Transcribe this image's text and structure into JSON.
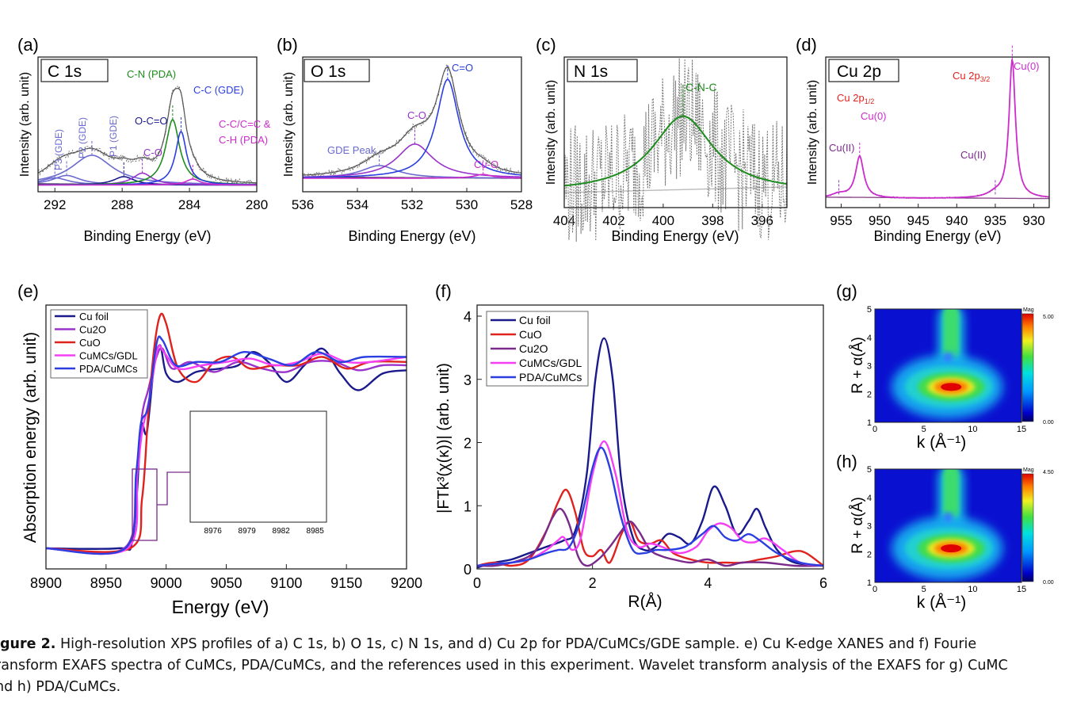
{
  "figure": {
    "caption_label": "igure 2.",
    "caption_lines": [
      " High-resolution XPS profiles of a) C 1s, b) O 1s, c) N 1s, and d) Cu 2p for PDA/CuMCs/GDE sample. e) Cu K-edge XANES and f) Fourie",
      "ransform EXAFS spectra of CuMCs, PDA/CuMCs, and the references used in this experiment. Wavelet transform analysis of the EXAFS for g) CuMC",
      "nd h) PDA/CuMCs."
    ]
  },
  "colors": {
    "navy": "#1a1a8c",
    "blue": "#2b3fe0",
    "red": "#e0221e",
    "magenta": "#f53ff5",
    "purple": "#7a2a8a",
    "violet": "#9933cc",
    "green": "#1e8c1e",
    "gray": "#777777",
    "pink": "#cc2ccc",
    "lavender": "#6a6ad0"
  },
  "chart_data": [
    {
      "id": "a",
      "type": "line",
      "panel_label": "(a)",
      "box_label": "C 1s",
      "xlabel": "Binding Energy (eV)",
      "ylabel": "Intensity (arb. unit)",
      "xlim": [
        293,
        280
      ],
      "reversed_x": true,
      "x_ticks": [
        292,
        288,
        284,
        280
      ],
      "peaks": [
        {
          "label": "P3 (GDE)",
          "center": 292.0,
          "height": 0.06,
          "fwhm": 2.0,
          "color": "#6a6ad0"
        },
        {
          "label": "P2 (GDE)",
          "center": 291.3,
          "height": 0.08,
          "fwhm": 2.0,
          "color": "#6a6ad0"
        },
        {
          "label": "P1 (GDE)",
          "center": 289.8,
          "height": 0.25,
          "fwhm": 3.0,
          "color": "#6a6ad0"
        },
        {
          "label": "O-C=O",
          "center": 287.9,
          "height": 0.07,
          "fwhm": 1.5,
          "color": "#1a1a8c"
        },
        {
          "label": "C-O",
          "center": 286.8,
          "height": 0.1,
          "fwhm": 1.4,
          "color": "#9933cc"
        },
        {
          "label": "C-N (PDA)",
          "center": 285.0,
          "height": 0.55,
          "fwhm": 1.0,
          "color": "#1e8c1e"
        },
        {
          "label": "C-C (GDE)",
          "center": 284.5,
          "height": 0.45,
          "fwhm": 0.8,
          "color": "#2b3fe0"
        },
        {
          "label": "C-C/C=C & C-H (PDA)",
          "center": 283.8,
          "height": 0.05,
          "fwhm": 1.0,
          "color": "#cc2ccc"
        }
      ],
      "text_labels": [
        "C-N (PDA)",
        "C-C (GDE)",
        "O-C=O",
        "C-O",
        "P1 (GDE)",
        "P2 (GDE)",
        "P3 (GDE)",
        "C-C/C=C &",
        "C-H (PDA)"
      ]
    },
    {
      "id": "b",
      "type": "line",
      "panel_label": "(b)",
      "box_label": "O 1s",
      "xlabel": "Binding Energy (eV)",
      "ylabel": "Intensity (arb. unit)",
      "xlim": [
        536,
        528
      ],
      "reversed_x": true,
      "x_ticks": [
        536,
        534,
        532,
        530,
        528
      ],
      "peaks": [
        {
          "label": "GDE Peak",
          "center": 533.2,
          "height": 0.1,
          "fwhm": 1.6,
          "color": "#6a6ad0"
        },
        {
          "label": "C-O",
          "center": 531.9,
          "height": 0.27,
          "fwhm": 1.6,
          "color": "#9933cc"
        },
        {
          "label": "C=O",
          "center": 530.7,
          "height": 0.78,
          "fwhm": 1.0,
          "color": "#2b3fe0"
        },
        {
          "label": "Cu-O",
          "center": 529.4,
          "height": 0.03,
          "fwhm": 0.8,
          "color": "#cc2ccc"
        }
      ],
      "text_labels": [
        "C=O",
        "C-O",
        "GDE Peak",
        "Cu-O"
      ]
    },
    {
      "id": "c",
      "type": "line",
      "panel_label": "(c)",
      "box_label": "N 1s",
      "xlabel": "Binding Energy (eV)",
      "ylabel": "Intensity (arb. unit)",
      "xlim": [
        404,
        395
      ],
      "reversed_x": true,
      "x_ticks": [
        404,
        402,
        400,
        398,
        396
      ],
      "peaks": [
        {
          "label": "C-N-C",
          "center": 399.2,
          "height": 0.55,
          "fwhm": 3.0,
          "color": "#1e8c1e"
        }
      ],
      "text_labels": [
        "C-N-C"
      ]
    },
    {
      "id": "d",
      "type": "line",
      "panel_label": "(d)",
      "box_label": "Cu 2p",
      "xlabel": "Binding Energy (eV)",
      "ylabel": "Intensity (arb. unit)",
      "xlim": [
        957,
        928
      ],
      "reversed_x": true,
      "x_ticks": [
        955,
        950,
        945,
        940,
        935,
        930
      ],
      "peaks": [
        {
          "label": "Cu(II) 2p1/2",
          "center": 955.3,
          "height": 0.03,
          "fwhm": 2.5,
          "color": "#9933cc"
        },
        {
          "label": "Cu(0) 2p1/2",
          "center": 952.6,
          "height": 0.3,
          "fwhm": 1.3,
          "color": "#cc2ccc"
        },
        {
          "label": "Cu(II) 2p3/2",
          "center": 935.0,
          "height": 0.03,
          "fwhm": 2.5,
          "color": "#9933cc"
        },
        {
          "label": "Cu(0) 2p3/2",
          "center": 932.8,
          "height": 1.0,
          "fwhm": 1.0,
          "color": "#cc2ccc"
        }
      ],
      "text_labels": [
        "Cu(0)",
        "Cu 2p",
        "3/2",
        "Cu 2p",
        "1/2",
        "Cu(0)",
        "Cu(II)",
        "Cu(II)"
      ]
    },
    {
      "id": "e",
      "type": "line",
      "panel_label": "(e)",
      "xlabel": "Energy (eV)",
      "ylabel": "Absorption energy (arb. unit)",
      "xlim": [
        8900,
        9200
      ],
      "ylim": [
        0,
        1.6
      ],
      "x_ticks": [
        8900,
        8950,
        9000,
        9050,
        9100,
        9150,
        9200
      ],
      "legend": [
        "Cu foil",
        "Cu2O",
        "CuO",
        "CuMCs/GDL",
        "PDA/CuMCs"
      ],
      "series": [
        {
          "name": "Cu foil",
          "color": "#1a1a8c",
          "x": [
            8900,
            8960,
            8972,
            8978,
            8980,
            8984,
            8990,
            8995,
            9000,
            9010,
            9025,
            9045,
            9060,
            9072,
            9085,
            9100,
            9115,
            9130,
            9145,
            9160,
            9180,
            9200
          ],
          "y": [
            0.0,
            0.0,
            0.05,
            0.6,
            0.75,
            0.7,
            1.1,
            1.22,
            1.05,
            1.0,
            1.06,
            1.08,
            1.1,
            1.18,
            1.12,
            1.0,
            1.1,
            1.2,
            1.05,
            0.95,
            1.05,
            1.07
          ]
        },
        {
          "name": "Cu2O",
          "color": "#9933cc",
          "x": [
            8900,
            8965,
            8975,
            8980,
            8985,
            8992,
            8997,
            9005,
            9020,
            9040,
            9060,
            9080,
            9100,
            9120,
            9140,
            9160,
            9180,
            9200
          ],
          "y": [
            0.0,
            0.0,
            0.4,
            0.8,
            0.95,
            1.15,
            1.2,
            1.08,
            1.12,
            1.06,
            1.12,
            1.08,
            1.06,
            1.12,
            1.12,
            1.07,
            1.1,
            1.1
          ]
        },
        {
          "name": "CuO",
          "color": "#e0221e",
          "x": [
            8900,
            8970,
            8980,
            8985,
            8990,
            8995,
            9000,
            9010,
            9025,
            9040,
            9055,
            9070,
            9090,
            9110,
            9130,
            9150,
            9170,
            9200
          ],
          "y": [
            0.0,
            0.0,
            0.3,
            0.8,
            1.2,
            1.4,
            1.35,
            1.08,
            1.0,
            1.12,
            1.15,
            1.08,
            1.1,
            1.1,
            1.15,
            1.08,
            1.12,
            1.12
          ]
        },
        {
          "name": "CuMCs/GDL",
          "color": "#f53ff5",
          "x": [
            8900,
            8968,
            8976,
            8980,
            8986,
            8993,
            8998,
            9010,
            9030,
            9050,
            9070,
            9090,
            9110,
            9130,
            9150,
            9170,
            9200
          ],
          "y": [
            0.0,
            0.0,
            0.45,
            0.7,
            0.9,
            1.2,
            1.18,
            1.08,
            1.1,
            1.12,
            1.14,
            1.1,
            1.12,
            1.17,
            1.12,
            1.12,
            1.15
          ]
        },
        {
          "name": "PDA/CuMCs",
          "color": "#2b3fe0",
          "x": [
            8900,
            8966,
            8975,
            8979,
            8985,
            8992,
            8997,
            9008,
            9025,
            9045,
            9065,
            9085,
            9105,
            9125,
            9145,
            9165,
            9200
          ],
          "y": [
            0.0,
            0.0,
            0.45,
            0.75,
            0.85,
            1.23,
            1.25,
            1.1,
            1.12,
            1.12,
            1.18,
            1.14,
            1.1,
            1.18,
            1.12,
            1.15,
            1.15
          ]
        }
      ],
      "inset": {
        "xlim": [
          8974,
          8986
        ],
        "x_ticks": [
          8976,
          8979,
          8982,
          8985
        ]
      }
    },
    {
      "id": "f",
      "type": "line",
      "panel_label": "(f)",
      "xlabel": "R(Å)",
      "ylabel": "|FTk³(χ(κ))| (arb. unit)",
      "xlim": [
        0,
        6
      ],
      "ylim": [
        0,
        4.2
      ],
      "x_ticks": [
        0,
        2,
        4,
        6
      ],
      "y_ticks": [
        0,
        1,
        2,
        3,
        4
      ],
      "legend": [
        "Cu foil",
        "CuO",
        "Cu2O",
        "CuMCs/GDL",
        "PDA/CuMCs"
      ],
      "series": [
        {
          "name": "Cu foil",
          "color": "#1a1a8c",
          "x": [
            0,
            0.3,
            0.6,
            0.9,
            1.2,
            1.5,
            1.7,
            1.9,
            2.05,
            2.2,
            2.35,
            2.5,
            2.7,
            2.9,
            3.1,
            3.3,
            3.5,
            3.7,
            3.9,
            4.1,
            4.3,
            4.5,
            4.7,
            4.85,
            5.0,
            5.2,
            5.5,
            6.0
          ],
          "y": [
            0.02,
            0.1,
            0.15,
            0.25,
            0.35,
            0.45,
            0.6,
            1.5,
            3.0,
            3.65,
            3.0,
            1.4,
            0.5,
            0.3,
            0.35,
            0.55,
            0.5,
            0.4,
            0.75,
            1.3,
            1.0,
            0.55,
            0.75,
            0.95,
            0.65,
            0.3,
            0.1,
            0.05
          ]
        },
        {
          "name": "CuO",
          "color": "#e0221e",
          "x": [
            0,
            0.3,
            0.6,
            0.9,
            1.2,
            1.4,
            1.55,
            1.7,
            1.85,
            2.0,
            2.15,
            2.3,
            2.5,
            2.65,
            2.8,
            3.0,
            3.2,
            3.4,
            3.7,
            4.0,
            4.3,
            4.6,
            4.9,
            5.2,
            5.5,
            5.7,
            6.0
          ],
          "y": [
            0.05,
            0.1,
            0.05,
            0.15,
            0.6,
            1.05,
            1.25,
            0.9,
            0.3,
            0.2,
            0.3,
            0.1,
            0.55,
            0.75,
            0.45,
            0.4,
            0.45,
            0.25,
            0.15,
            0.1,
            0.1,
            0.1,
            0.15,
            0.2,
            0.28,
            0.25,
            0.05
          ]
        },
        {
          "name": "Cu2O",
          "color": "#7a2a8a",
          "x": [
            0,
            0.3,
            0.6,
            0.9,
            1.1,
            1.3,
            1.45,
            1.6,
            1.75,
            1.9,
            2.1,
            2.3,
            2.5,
            2.65,
            2.8,
            3.0,
            3.2,
            3.4,
            3.7,
            4.0,
            4.3,
            4.6,
            5.0,
            5.5,
            6.0
          ],
          "y": [
            0.05,
            0.05,
            0.1,
            0.2,
            0.4,
            0.8,
            0.95,
            0.7,
            0.2,
            0.05,
            0.15,
            0.35,
            0.6,
            0.75,
            0.6,
            0.3,
            0.2,
            0.15,
            0.1,
            0.15,
            0.05,
            0.1,
            0.1,
            0.05,
            0.05
          ]
        },
        {
          "name": "CuMCs/GDL",
          "color": "#f53ff5",
          "x": [
            0,
            0.3,
            0.6,
            0.9,
            1.2,
            1.4,
            1.5,
            1.65,
            1.8,
            2.0,
            2.2,
            2.4,
            2.6,
            2.8,
            3.0,
            3.2,
            3.5,
            3.8,
            4.0,
            4.2,
            4.4,
            4.6,
            4.8,
            5.0,
            5.3,
            5.6,
            6.0
          ],
          "y": [
            0.05,
            0.08,
            0.1,
            0.15,
            0.3,
            0.45,
            0.5,
            0.3,
            0.5,
            1.5,
            2.02,
            1.5,
            0.6,
            0.35,
            0.4,
            0.35,
            0.25,
            0.35,
            0.6,
            0.72,
            0.65,
            0.45,
            0.42,
            0.48,
            0.3,
            0.1,
            0.05
          ]
        },
        {
          "name": "PDA/CuMCs",
          "color": "#2b3fe0",
          "x": [
            0,
            0.3,
            0.6,
            0.9,
            1.2,
            1.4,
            1.6,
            1.8,
            2.0,
            2.15,
            2.3,
            2.5,
            2.7,
            2.9,
            3.1,
            3.3,
            3.6,
            3.9,
            4.1,
            4.3,
            4.5,
            4.7,
            4.9,
            5.2,
            5.6,
            6.0
          ],
          "y": [
            0.05,
            0.08,
            0.1,
            0.15,
            0.25,
            0.3,
            0.35,
            0.8,
            1.6,
            1.92,
            1.6,
            0.8,
            0.3,
            0.25,
            0.3,
            0.3,
            0.35,
            0.55,
            0.68,
            0.5,
            0.45,
            0.55,
            0.45,
            0.25,
            0.1,
            0.05
          ]
        }
      ]
    },
    {
      "id": "g",
      "type": "heatmap",
      "panel_label": "(g)",
      "xlabel": "k (Å⁻¹)",
      "ylabel": "R + α(Å)",
      "xlim": [
        0,
        15
      ],
      "ylim": [
        1,
        5
      ],
      "x_ticks": [
        0,
        5,
        10,
        15
      ],
      "y_ticks": [
        1,
        2,
        3,
        4,
        5
      ],
      "colorbar": {
        "title": "Mag",
        "max_label": "5.00",
        "min_label": "0.00"
      },
      "maxima": [
        {
          "k": 7.8,
          "r": 2.25,
          "mag": 5.0
        }
      ]
    },
    {
      "id": "h",
      "type": "heatmap",
      "panel_label": "(h)",
      "xlabel": "k (Å⁻¹)",
      "ylabel": "R + α(Å)",
      "xlim": [
        0,
        15
      ],
      "ylim": [
        1,
        5
      ],
      "x_ticks": [
        0,
        5,
        10,
        15
      ],
      "y_ticks": [
        1,
        2,
        3,
        4,
        5
      ],
      "colorbar": {
        "title": "Mag",
        "max_label": "4.50",
        "min_label": "0.00"
      },
      "maxima": [
        {
          "k": 7.8,
          "r": 2.2,
          "mag": 4.5
        }
      ]
    }
  ]
}
